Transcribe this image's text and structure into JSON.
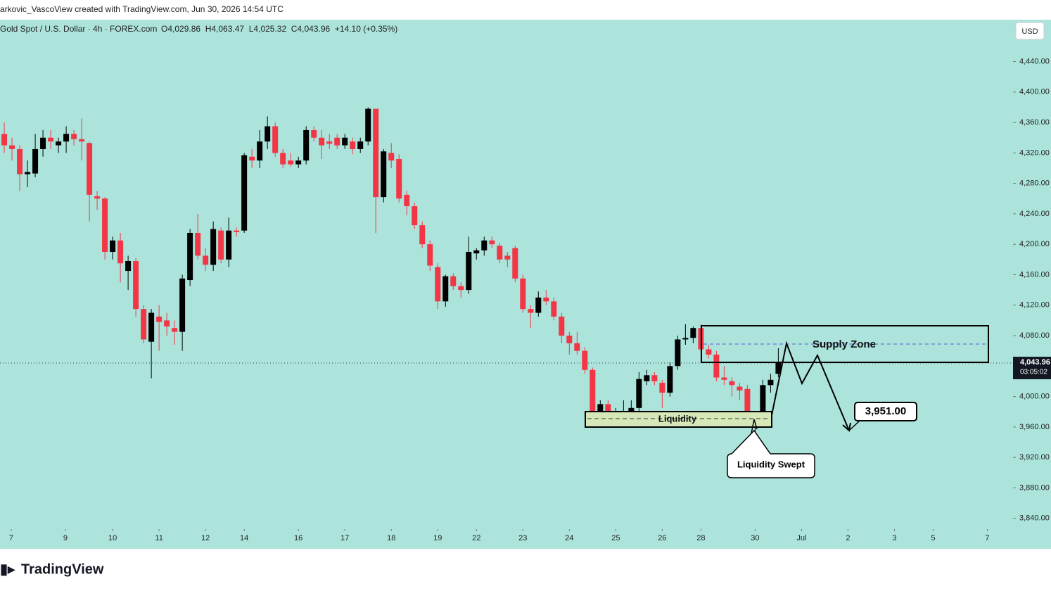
{
  "header": {
    "created": "arkovic_VascoView created with TradingView.com, Jun 30, 2026 14:54 UTC",
    "symbol": "Gold Spot / U.S. Dollar · 4h · FOREX.com",
    "ohlc": "O4,029.86  H4,063.47  L4,025.32  C4,043.96  +14.10 (+0.35%)"
  },
  "chart_data": {
    "type": "candlestick",
    "currency": "USD",
    "up_color": "#000000",
    "down_color": "#f23645",
    "open": [
      4345,
      4330,
      4325,
      4292,
      4293,
      4325,
      4340,
      4330,
      4335,
      4345,
      4338,
      4333,
      4263,
      4260,
      4190,
      4205,
      4165,
      4178,
      4115,
      4072,
      4105,
      4100,
      4090,
      4085,
      4153,
      4215,
      4185,
      4173,
      4218,
      4180,
      4218,
      4218,
      4315,
      4310,
      4335,
      4355,
      4320,
      4310,
      4305,
      4310,
      4350,
      4340,
      4335,
      4340,
      4330,
      4335,
      4325,
      4335,
      4378,
      4262,
      4320,
      4312,
      4265,
      4250,
      4225,
      4200,
      4170,
      4125,
      4158,
      4145,
      4140,
      4188,
      4192,
      4205,
      4198,
      4185,
      4195,
      4155,
      4115,
      4110,
      4130,
      4125,
      4105,
      4080,
      4070,
      4060,
      4035,
      3970,
      3990,
      3972,
      3978,
      3980,
      3985,
      4020,
      4028,
      4018,
      4005,
      4040,
      4075,
      4077,
      4090,
      4062,
      4055,
      4025,
      4020,
      4013,
      4010,
      3962,
      3970,
      4015,
      4029.86
    ],
    "high": [
      4360,
      4340,
      4330,
      4310,
      4345,
      4350,
      4350,
      4340,
      4355,
      4350,
      4365,
      4335,
      4270,
      4262,
      4210,
      4215,
      4185,
      4182,
      4120,
      4115,
      4120,
      4110,
      4100,
      4160,
      4220,
      4240,
      4195,
      4230,
      4222,
      4235,
      4222,
      4320,
      4325,
      4350,
      4368,
      4360,
      4325,
      4320,
      4315,
      4355,
      4355,
      4350,
      4345,
      4345,
      4345,
      4340,
      4340,
      4380,
      4378,
      4325,
      4333,
      4318,
      4270,
      4255,
      4230,
      4205,
      4175,
      4160,
      4162,
      4150,
      4210,
      4195,
      4210,
      4210,
      4202,
      4190,
      4198,
      4160,
      4120,
      4138,
      4140,
      4130,
      4110,
      4085,
      4085,
      4065,
      4038,
      3995,
      3995,
      3985,
      3995,
      3995,
      4032,
      4035,
      4032,
      4022,
      4045,
      4080,
      4095,
      4092,
      4095,
      4068,
      4060,
      4040,
      4025,
      4018,
      4015,
      3975,
      4022,
      4030,
      4063.47
    ],
    "low": [
      4320,
      4310,
      4270,
      4275,
      4288,
      4315,
      4325,
      4320,
      4320,
      4330,
      4310,
      4230,
      4245,
      4180,
      4180,
      4150,
      4140,
      4105,
      4070,
      4024,
      4060,
      4080,
      4068,
      4060,
      4145,
      4180,
      4165,
      4165,
      4175,
      4170,
      4210,
      4215,
      4300,
      4300,
      4325,
      4315,
      4300,
      4302,
      4300,
      4305,
      4335,
      4312,
      4325,
      4325,
      4325,
      4318,
      4320,
      4330,
      4215,
      4255,
      4300,
      4255,
      4238,
      4220,
      4195,
      4165,
      4115,
      4118,
      4140,
      4130,
      4135,
      4180,
      4185,
      4195,
      4175,
      4170,
      4150,
      4110,
      4090,
      4105,
      4120,
      4100,
      4070,
      4055,
      4055,
      4030,
      3963,
      3960,
      3965,
      3962,
      3970,
      3970,
      3980,
      4015,
      4015,
      3985,
      4000,
      4035,
      4068,
      4070,
      4058,
      4050,
      4020,
      4015,
      4000,
      3995,
      3965,
      3950,
      3965,
      4005,
      4025.32
    ],
    "close": [
      4330,
      4325,
      4292,
      4295,
      4325,
      4340,
      4335,
      4335,
      4345,
      4338,
      4335,
      4265,
      4260,
      4190,
      4205,
      4175,
      4178,
      4115,
      4075,
      4110,
      4098,
      4092,
      4085,
      4155,
      4215,
      4185,
      4173,
      4220,
      4180,
      4218,
      4216,
      4317,
      4310,
      4335,
      4355,
      4320,
      4305,
      4305,
      4310,
      4350,
      4340,
      4330,
      4332,
      4330,
      4340,
      4325,
      4335,
      4378,
      4262,
      4322,
      4310,
      4260,
      4250,
      4225,
      4200,
      4172,
      4125,
      4158,
      4145,
      4140,
      4190,
      4192,
      4205,
      4200,
      4180,
      4180,
      4155,
      4115,
      4110,
      4130,
      4125,
      4105,
      4080,
      4070,
      4060,
      4035,
      3970,
      3990,
      3972,
      3980,
      3980,
      3985,
      4023,
      4028,
      4020,
      4005,
      4040,
      4075,
      4077,
      4090,
      4062,
      4055,
      4025,
      4022,
      4015,
      4008,
      3968,
      3970,
      4015,
      4022,
      4043.96
    ],
    "xlim": [
      -0.55,
      127.5
    ],
    "xticks": [
      {
        "value": 0.9,
        "label": "7"
      },
      {
        "value": 7.9,
        "label": "9"
      },
      {
        "value": 14,
        "label": "10"
      },
      {
        "value": 20,
        "label": "11"
      },
      {
        "value": 26,
        "label": "12"
      },
      {
        "value": 31,
        "label": "14"
      },
      {
        "value": 38,
        "label": "16"
      },
      {
        "value": 44,
        "label": "17"
      },
      {
        "value": 50,
        "label": "18"
      },
      {
        "value": 56,
        "label": "19"
      },
      {
        "value": 61,
        "label": "22"
      },
      {
        "value": 67,
        "label": "23"
      },
      {
        "value": 73,
        "label": "24"
      },
      {
        "value": 79,
        "label": "25"
      },
      {
        "value": 85,
        "label": "26"
      },
      {
        "value": 90,
        "label": "28"
      },
      {
        "value": 97,
        "label": "30"
      },
      {
        "value": 103,
        "label": "Jul"
      },
      {
        "value": 109,
        "label": "2"
      },
      {
        "value": 115,
        "label": "3"
      },
      {
        "value": 120,
        "label": "5"
      },
      {
        "value": 127,
        "label": "7"
      }
    ],
    "ylim": [
      3800,
      4495
    ],
    "yticks": [
      {
        "value": 3840,
        "label": "3,840.00"
      },
      {
        "value": 3880,
        "label": "3,880.00"
      },
      {
        "value": 3920,
        "label": "3,920.00"
      },
      {
        "value": 3960,
        "label": "3,960.00"
      },
      {
        "value": 4000,
        "label": "4,000.00"
      },
      {
        "value": 4040,
        "label": "4,040.00"
      },
      {
        "value": 4080,
        "label": "4,080.00"
      },
      {
        "value": 4120,
        "label": "4,120.00"
      },
      {
        "value": 4160,
        "label": "4,160.00"
      },
      {
        "value": 4200,
        "label": "4,200.00"
      },
      {
        "value": 4240,
        "label": "4,240.00"
      },
      {
        "value": 4280,
        "label": "4,280.00"
      },
      {
        "value": 4320,
        "label": "4,320.00"
      },
      {
        "value": 4360,
        "label": "4,360.00"
      },
      {
        "value": 4400,
        "label": "4,400.00"
      },
      {
        "value": 4440,
        "label": "4,440.00"
      }
    ],
    "last_price": {
      "value": 4043.96,
      "label": "4,043.96",
      "countdown": "03:05:02"
    },
    "annotations": {
      "supply": "Supply Zone",
      "liquidity": "Liquidity",
      "swept": "Liquidity Swept",
      "target": "3,951.00"
    }
  },
  "footer": {
    "brand": "TradingView"
  }
}
